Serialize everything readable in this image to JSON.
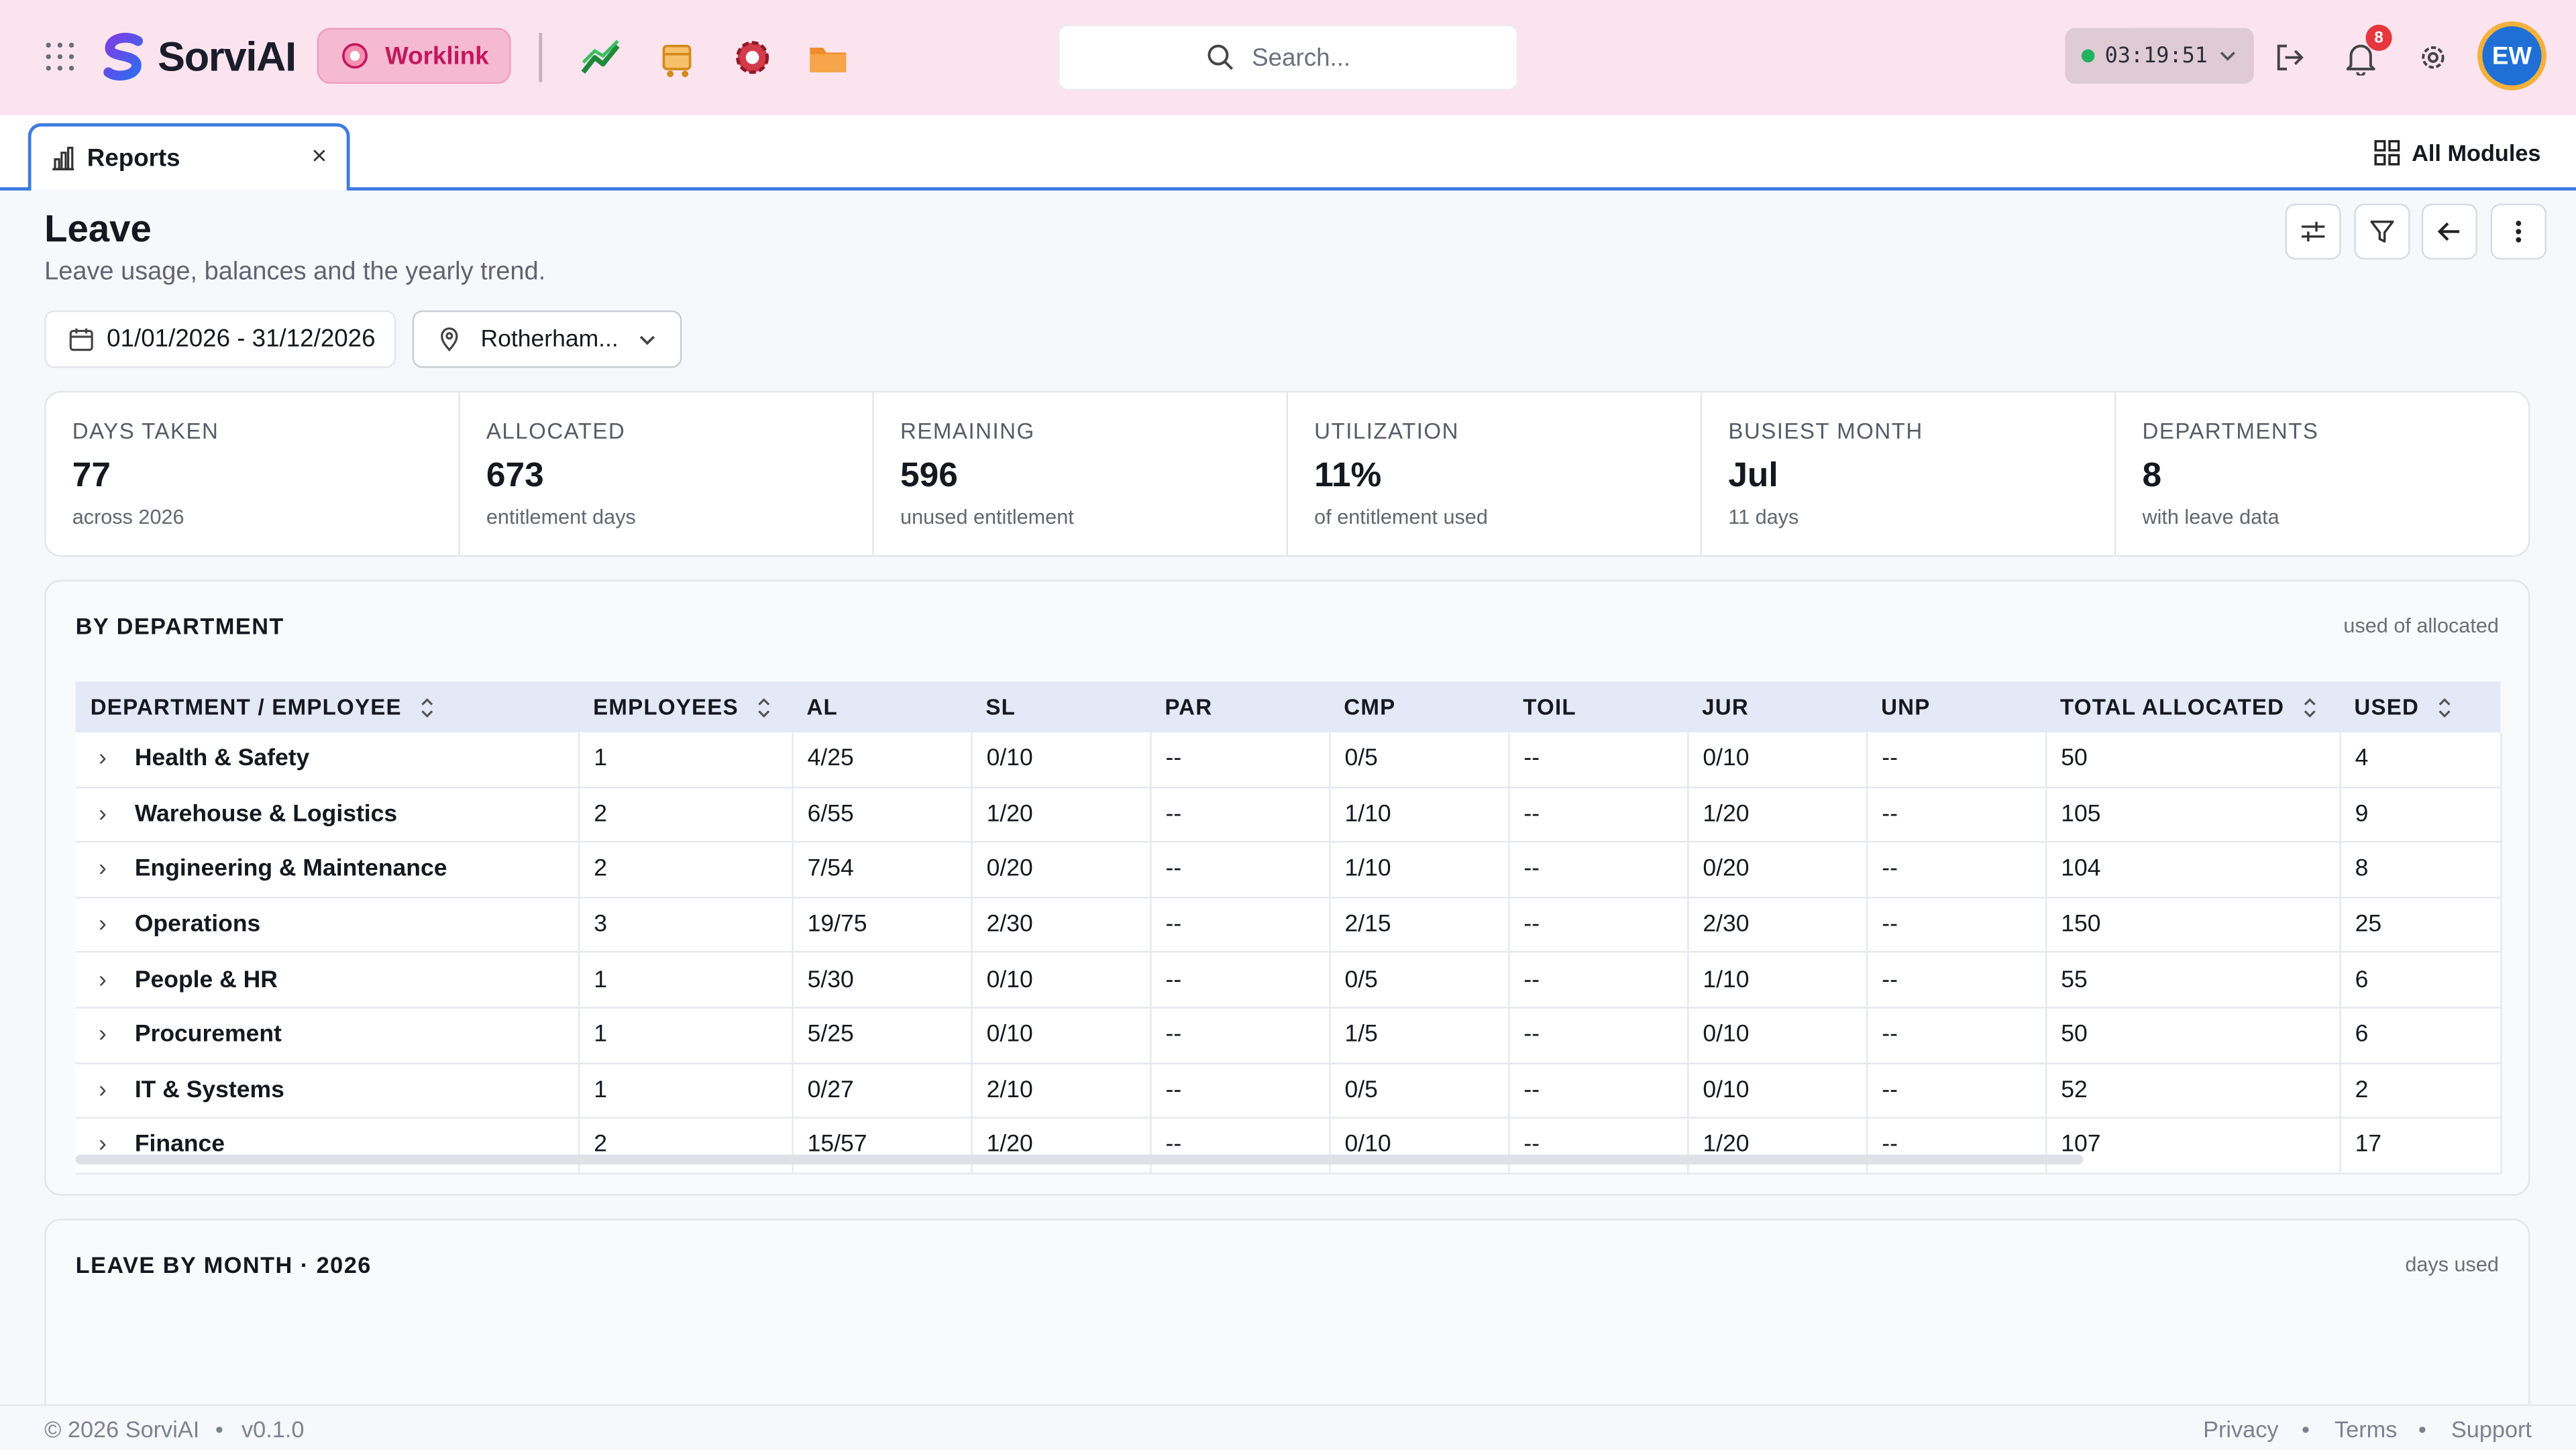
{
  "header": {
    "brand": "SorviAI",
    "workspace": "Worklink",
    "search_placeholder": "Search...",
    "timer": "03:19:51",
    "notifications_count": "8",
    "user_initials": "EW"
  },
  "tabs": {
    "active_label": "Reports",
    "all_modules_label": "All Modules"
  },
  "page": {
    "title": "Leave",
    "subtitle": "Leave usage, balances and the yearly trend."
  },
  "filters": {
    "date_range": "01/01/2026 - 31/12/2026",
    "location": "Rotherham..."
  },
  "stats": [
    {
      "label": "DAYS TAKEN",
      "value": "77",
      "sub": "across 2026"
    },
    {
      "label": "ALLOCATED",
      "value": "673",
      "sub": "entitlement days"
    },
    {
      "label": "REMAINING",
      "value": "596",
      "sub": "unused entitlement"
    },
    {
      "label": "UTILIZATION",
      "value": "11%",
      "sub": "of entitlement used"
    },
    {
      "label": "BUSIEST MONTH",
      "value": "Jul",
      "sub": "11 days"
    },
    {
      "label": "DEPARTMENTS",
      "value": "8",
      "sub": "with leave data"
    }
  ],
  "by_department": {
    "title": "BY DEPARTMENT",
    "note": "used of allocated",
    "columns": [
      "DEPARTMENT / EMPLOYEE",
      "EMPLOYEES",
      "AL",
      "SL",
      "PAR",
      "CMP",
      "TOIL",
      "JUR",
      "UNP",
      "TOTAL ALLOCATED",
      "USED"
    ],
    "rows": [
      [
        "Health & Safety",
        "1",
        "4/25",
        "0/10",
        "--",
        "0/5",
        "--",
        "0/10",
        "--",
        "50",
        "4"
      ],
      [
        "Warehouse & Logistics",
        "2",
        "6/55",
        "1/20",
        "--",
        "1/10",
        "--",
        "1/20",
        "--",
        "105",
        "9"
      ],
      [
        "Engineering & Maintenance",
        "2",
        "7/54",
        "0/20",
        "--",
        "1/10",
        "--",
        "0/20",
        "--",
        "104",
        "8"
      ],
      [
        "Operations",
        "3",
        "19/75",
        "2/30",
        "--",
        "2/15",
        "--",
        "2/30",
        "--",
        "150",
        "25"
      ],
      [
        "People & HR",
        "1",
        "5/30",
        "0/10",
        "--",
        "0/5",
        "--",
        "1/10",
        "--",
        "55",
        "6"
      ],
      [
        "Procurement",
        "1",
        "5/25",
        "0/10",
        "--",
        "1/5",
        "--",
        "0/10",
        "--",
        "50",
        "6"
      ],
      [
        "IT & Systems",
        "1",
        "0/27",
        "2/10",
        "--",
        "0/5",
        "--",
        "0/10",
        "--",
        "52",
        "2"
      ],
      [
        "Finance",
        "2",
        "15/57",
        "1/20",
        "--",
        "0/10",
        "--",
        "1/20",
        "--",
        "107",
        "17"
      ]
    ]
  },
  "leave_by_month": {
    "title": "LEAVE BY MONTH · 2026",
    "note": "days used"
  },
  "footer": {
    "copyright": "© 2026 SorviAI",
    "version": "v0.1.0",
    "links": [
      "Privacy",
      "Terms",
      "Support"
    ]
  },
  "colors": {
    "header_bg": "#fce4ef",
    "accent_pink": "#c2185b",
    "tab_blue": "#3d7be0",
    "avatar_blue": "#1f6fd6"
  }
}
